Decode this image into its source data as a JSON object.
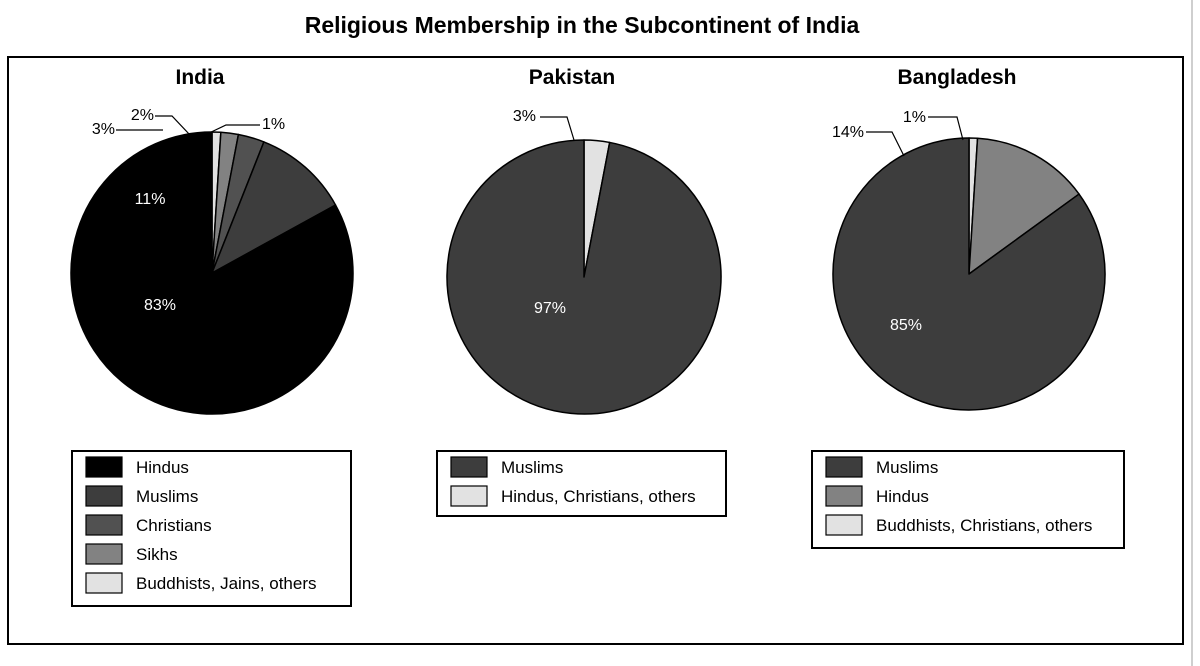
{
  "page": {
    "title": "Religious Membership in the Subcontinent of India"
  },
  "chart_data": [
    {
      "type": "pie",
      "title": "India",
      "slices": [
        {
          "label": "Hindus",
          "value": 83,
          "pct_label": "83%",
          "color": "#000000",
          "text_color": "#ffffff"
        },
        {
          "label": "Muslims",
          "value": 11,
          "pct_label": "11%",
          "color": "#3d3d3d",
          "text_color": "#ffffff"
        },
        {
          "label": "Christians",
          "value": 3,
          "pct_label": "3%",
          "color": "#515151",
          "text_color": "#000000"
        },
        {
          "label": "Sikhs",
          "value": 2,
          "pct_label": "2%",
          "color": "#828282",
          "text_color": "#000000"
        },
        {
          "label": "Buddhists, Jains, others",
          "value": 1,
          "pct_label": "1%",
          "color": "#e2e2e2",
          "text_color": "#000000"
        }
      ]
    },
    {
      "type": "pie",
      "title": "Pakistan",
      "slices": [
        {
          "label": "Muslims",
          "value": 97,
          "pct_label": "97%",
          "color": "#3d3d3d",
          "text_color": "#ffffff"
        },
        {
          "label": "Hindus, Christians, others",
          "value": 3,
          "pct_label": "3%",
          "color": "#e2e2e2",
          "text_color": "#000000"
        }
      ]
    },
    {
      "type": "pie",
      "title": "Bangladesh",
      "slices": [
        {
          "label": "Muslims",
          "value": 85,
          "pct_label": "85%",
          "color": "#3d3d3d",
          "text_color": "#ffffff"
        },
        {
          "label": "Hindus",
          "value": 14,
          "pct_label": "14%",
          "color": "#828282",
          "text_color": "#000000"
        },
        {
          "label": "Buddhists, Christians, others",
          "value": 1,
          "pct_label": "1%",
          "color": "#e2e2e2",
          "text_color": "#000000"
        }
      ]
    }
  ]
}
